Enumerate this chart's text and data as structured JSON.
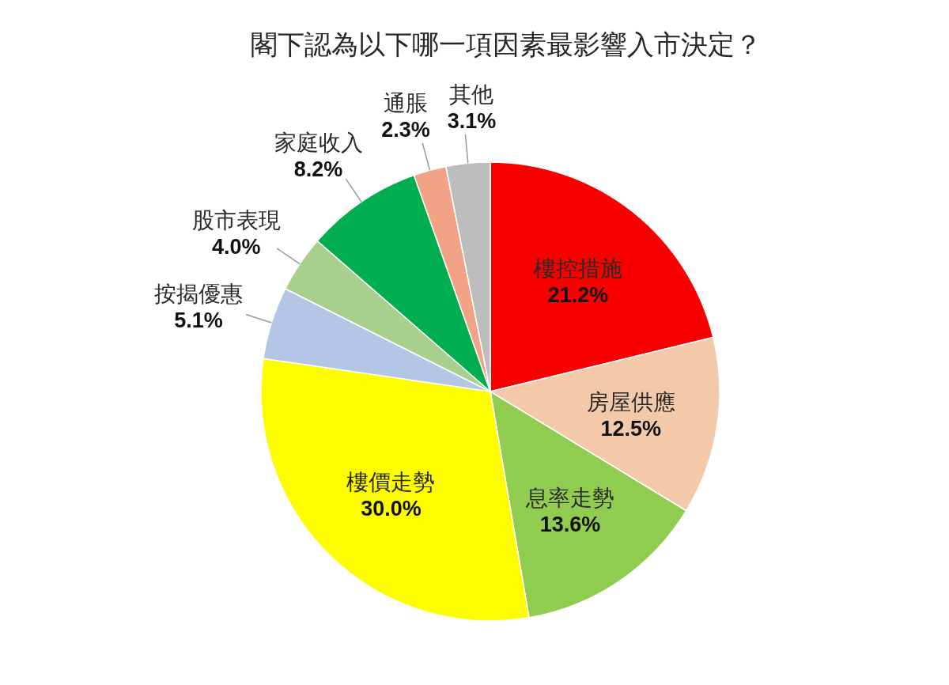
{
  "chart_data": {
    "type": "pie",
    "title": "閣下認為以下哪一項因素最影響入市決定？",
    "categories": [
      "樓控措施",
      "房屋供應",
      "息率走勢",
      "樓價走勢",
      "按揭優惠",
      "股市表現",
      "家庭收入",
      "通脹",
      "其他"
    ],
    "values": [
      21.2,
      12.5,
      13.6,
      30.0,
      5.1,
      4.0,
      8.2,
      2.3,
      3.1
    ],
    "colors": [
      "#f80000",
      "#f4c9aa",
      "#8fcc50",
      "#fdfd00",
      "#b4c6e6",
      "#a8d08d",
      "#00ae4f",
      "#f2a385",
      "#bdbdbd"
    ],
    "value_labels": [
      "21.2%",
      "12.5%",
      "13.6%",
      "30.0%",
      "5.1%",
      "4.0%",
      "8.2%",
      "2.3%",
      "3.1%"
    ]
  }
}
